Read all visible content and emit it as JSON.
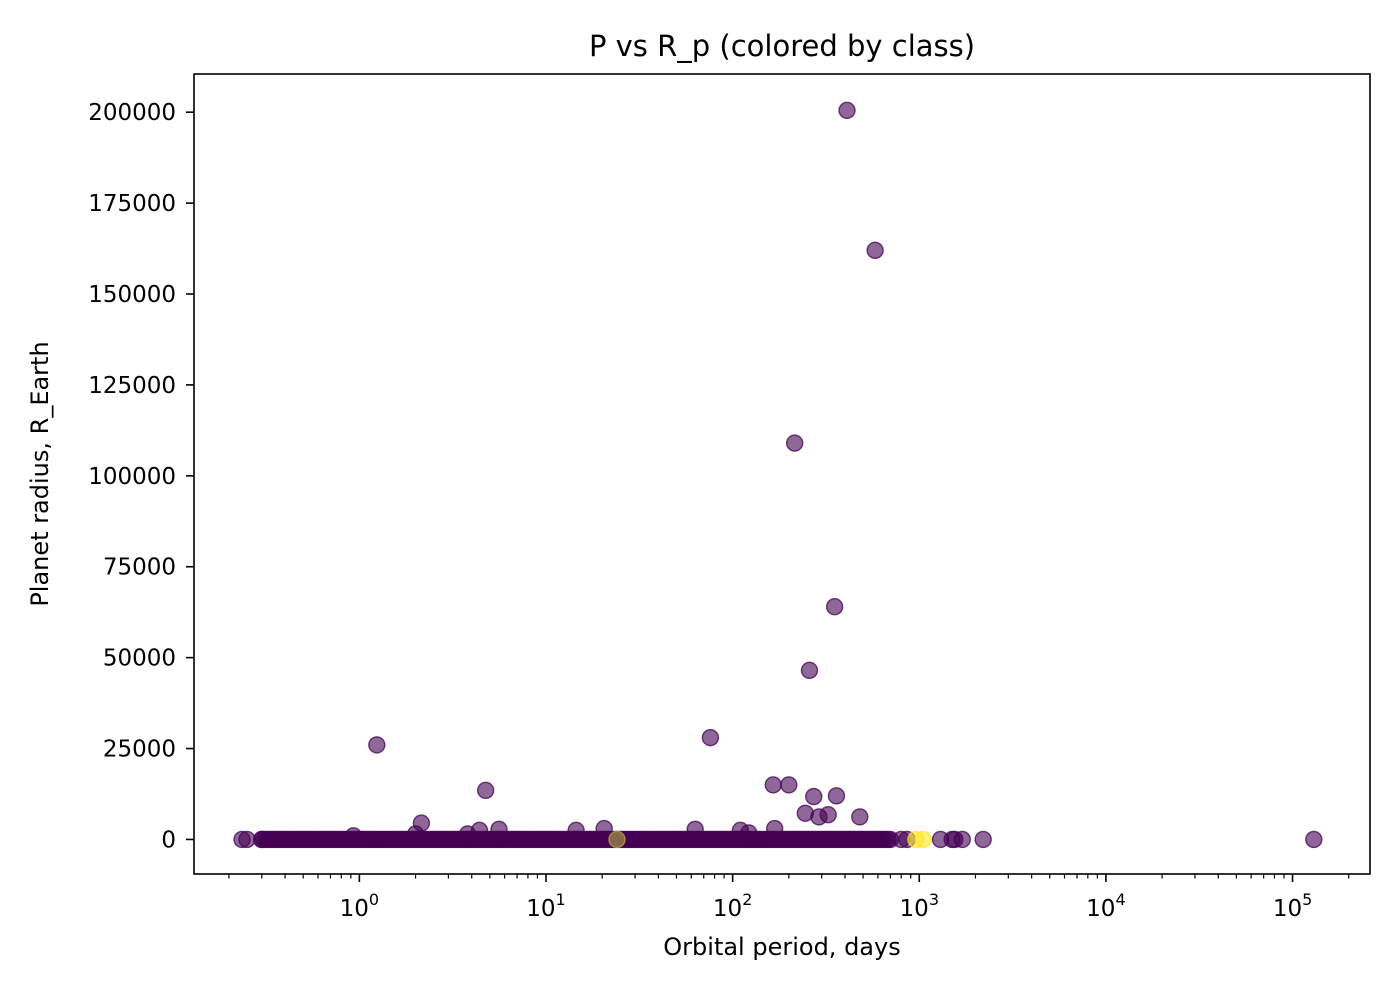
{
  "chart_data": {
    "type": "scatter",
    "title": "P vs R_p (colored by class)",
    "xlabel": "Orbital period, days",
    "ylabel": "Planet radius, R_Earth",
    "x_scale": "log",
    "xlim": [
      0.13,
      260000
    ],
    "ylim": [
      -9500,
      210500
    ],
    "x_ticks": [
      {
        "value": 1,
        "base": "10",
        "exp": "0"
      },
      {
        "value": 10,
        "base": "10",
        "exp": "1"
      },
      {
        "value": 100,
        "base": "10",
        "exp": "2"
      },
      {
        "value": 1000,
        "base": "10",
        "exp": "3"
      },
      {
        "value": 10000,
        "base": "10",
        "exp": "4"
      },
      {
        "value": 100000,
        "base": "10",
        "exp": "5"
      }
    ],
    "y_ticks": [
      {
        "value": 0,
        "label": "0"
      },
      {
        "value": 25000,
        "label": "25000"
      },
      {
        "value": 50000,
        "label": "50000"
      },
      {
        "value": 75000,
        "label": "75000"
      },
      {
        "value": 100000,
        "label": "100000"
      },
      {
        "value": 125000,
        "label": "125000"
      },
      {
        "value": 150000,
        "label": "150000"
      },
      {
        "value": 175000,
        "label": "175000"
      },
      {
        "value": 200000,
        "label": "200000"
      }
    ],
    "grid": false,
    "legend": "none",
    "colors": {
      "class_0": "#440154",
      "class_1": "#fde725",
      "class_mid": "#b5aa43"
    },
    "point_alpha": 0.6,
    "dense_band": {
      "x_min": 0.3,
      "x_max": 700,
      "y": 0,
      "class": "class_0"
    },
    "points": [
      {
        "x": 0.235,
        "y": 0,
        "class": "class_0"
      },
      {
        "x": 0.25,
        "y": 0,
        "class": "class_0"
      },
      {
        "x": 0.3,
        "y": 0,
        "class": "class_0"
      },
      {
        "x": 0.93,
        "y": 1000,
        "class": "class_0"
      },
      {
        "x": 1.24,
        "y": 26000,
        "class": "class_0"
      },
      {
        "x": 2.15,
        "y": 4500,
        "class": "class_0"
      },
      {
        "x": 2.0,
        "y": 1500,
        "class": "class_0"
      },
      {
        "x": 3.8,
        "y": 1500,
        "class": "class_0"
      },
      {
        "x": 4.4,
        "y": 2500,
        "class": "class_0"
      },
      {
        "x": 4.75,
        "y": 13500,
        "class": "class_0"
      },
      {
        "x": 5.6,
        "y": 2800,
        "class": "class_0"
      },
      {
        "x": 14.5,
        "y": 2500,
        "class": "class_0"
      },
      {
        "x": 20.5,
        "y": 3000,
        "class": "class_0"
      },
      {
        "x": 24,
        "y": 0,
        "class": "class_mid"
      },
      {
        "x": 63,
        "y": 2800,
        "class": "class_0"
      },
      {
        "x": 76,
        "y": 28000,
        "class": "class_0"
      },
      {
        "x": 110,
        "y": 2500,
        "class": "class_0"
      },
      {
        "x": 122,
        "y": 1800,
        "class": "class_0"
      },
      {
        "x": 165,
        "y": 15000,
        "class": "class_0"
      },
      {
        "x": 168,
        "y": 3000,
        "class": "class_0"
      },
      {
        "x": 200,
        "y": 15000,
        "class": "class_0"
      },
      {
        "x": 215,
        "y": 109000,
        "class": "class_0"
      },
      {
        "x": 245,
        "y": 7200,
        "class": "class_0"
      },
      {
        "x": 258,
        "y": 46500,
        "class": "class_0"
      },
      {
        "x": 272,
        "y": 11800,
        "class": "class_0"
      },
      {
        "x": 290,
        "y": 6200,
        "class": "class_0"
      },
      {
        "x": 325,
        "y": 6800,
        "class": "class_0"
      },
      {
        "x": 352,
        "y": 64000,
        "class": "class_0"
      },
      {
        "x": 360,
        "y": 12000,
        "class": "class_0"
      },
      {
        "x": 410,
        "y": 200500,
        "class": "class_0"
      },
      {
        "x": 480,
        "y": 6200,
        "class": "class_0"
      },
      {
        "x": 580,
        "y": 162000,
        "class": "class_0"
      },
      {
        "x": 800,
        "y": 0,
        "class": "class_0"
      },
      {
        "x": 860,
        "y": 0,
        "class": "class_0"
      },
      {
        "x": 960,
        "y": 0,
        "class": "class_1"
      },
      {
        "x": 1050,
        "y": 0,
        "class": "class_1"
      },
      {
        "x": 1300,
        "y": 0,
        "class": "class_0"
      },
      {
        "x": 1500,
        "y": 0,
        "class": "class_0"
      },
      {
        "x": 1550,
        "y": 0,
        "class": "class_0"
      },
      {
        "x": 1700,
        "y": 0,
        "class": "class_0"
      },
      {
        "x": 2200,
        "y": 0,
        "class": "class_0"
      },
      {
        "x": 130000,
        "y": 0,
        "class": "class_0"
      }
    ]
  }
}
